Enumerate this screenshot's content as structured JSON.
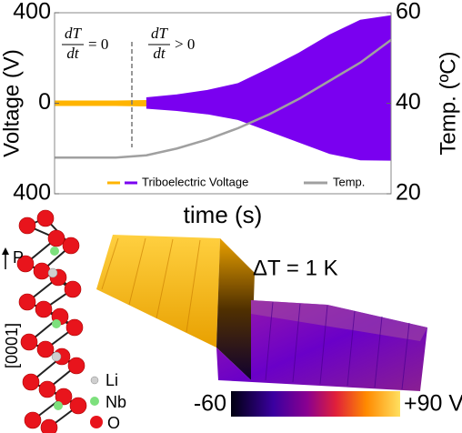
{
  "chart_data": {
    "type": "line",
    "xlabel": "time (s)",
    "ylabel": "Voltage (V)",
    "y2label": "Temp. (ºC)",
    "categories": [
      null,
      null,
      null,
      null,
      null,
      null,
      null,
      null,
      null,
      null,
      null,
      null
    ],
    "ylim": [
      -400,
      400
    ],
    "yticks": [
      {
        "value": -400,
        "label": "400"
      },
      0,
      400
    ],
    "y2lim": [
      20,
      60
    ],
    "y2ticks": [
      20,
      40,
      60
    ],
    "series": [
      {
        "name": "Triboelectric Voltage",
        "color": "#ffb400",
        "values": [
          8,
          8,
          8,
          10,
          null,
          null,
          null,
          null,
          null,
          null,
          null,
          null
        ],
        "lower": [
          -8,
          -8,
          -8,
          -10,
          null,
          null,
          null,
          null,
          null,
          null,
          null,
          null
        ]
      },
      {
        "color": "#7a00f0",
        "values": [
          null,
          null,
          null,
          22,
          35,
          55,
          85,
          150,
          220,
          300,
          365,
          385
        ],
        "lower": [
          null,
          null,
          null,
          -20,
          -30,
          -45,
          -70,
          -120,
          -170,
          -220,
          -248,
          -250
        ]
      },
      {
        "name": "Temp.",
        "color": "#a0a0a0",
        "axis": "y2",
        "values": [
          28,
          28,
          28,
          28.5,
          30,
          32,
          34.5,
          37.5,
          41,
          45,
          49,
          54
        ]
      }
    ],
    "annotations": [
      {
        "num": "dT",
        "den": "dt",
        "rel": "= 0"
      },
      {
        "num": "dT",
        "den": "dt",
        "rel": "> 0"
      }
    ]
  },
  "inset": {
    "polarization": "P",
    "direction": "[0001]",
    "atoms": [
      "Li",
      "Nb",
      "O"
    ],
    "step": "ΔT = 1 K",
    "colorbar": {
      "min": "-60",
      "max": "+90 V"
    }
  }
}
